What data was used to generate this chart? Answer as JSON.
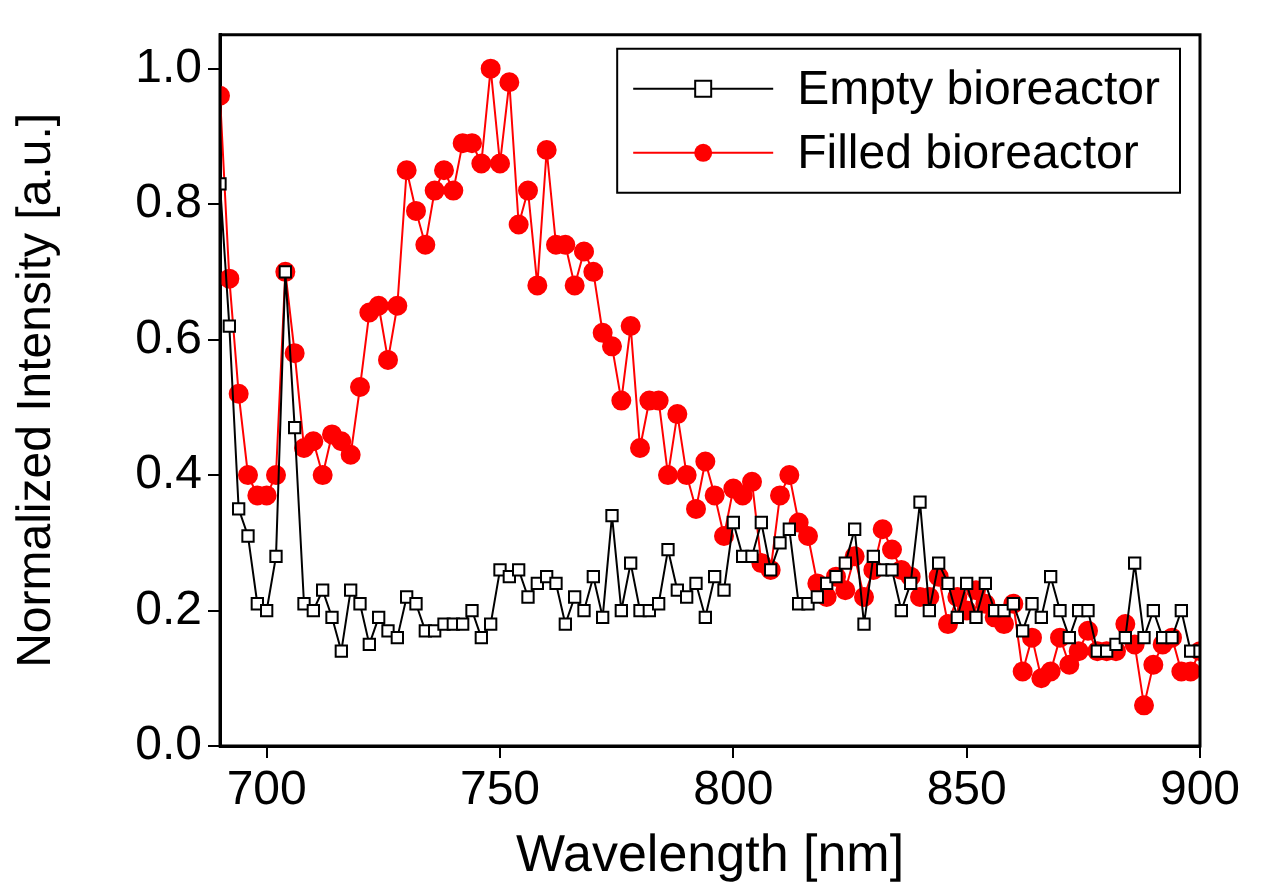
{
  "chart_data": {
    "type": "line",
    "xlabel": "Wavelength [nm]",
    "ylabel": "Normalized Intensity [a.u.]",
    "x": [
      690,
      692,
      694,
      696,
      698,
      700,
      702,
      704,
      706,
      708,
      710,
      712,
      714,
      716,
      718,
      720,
      722,
      724,
      726,
      728,
      730,
      732,
      734,
      736,
      738,
      740,
      742,
      744,
      746,
      748,
      750,
      752,
      754,
      756,
      758,
      760,
      762,
      764,
      766,
      768,
      770,
      772,
      774,
      776,
      778,
      780,
      782,
      784,
      786,
      788,
      790,
      792,
      794,
      796,
      798,
      800,
      802,
      804,
      806,
      808,
      810,
      812,
      814,
      816,
      818,
      820,
      822,
      824,
      826,
      828,
      830,
      832,
      834,
      836,
      838,
      840,
      842,
      844,
      846,
      848,
      850,
      852,
      854,
      856,
      858,
      860,
      862,
      864,
      866,
      868,
      870,
      872,
      874,
      876,
      878,
      880,
      882,
      884,
      886,
      888,
      890,
      892,
      894,
      896,
      898,
      900
    ],
    "series": [
      {
        "name": "Empty bioreactor",
        "color": "#000000",
        "marker": "square",
        "values": [
          0.83,
          0.62,
          0.35,
          0.31,
          0.21,
          0.2,
          0.28,
          0.7,
          0.47,
          0.21,
          0.2,
          0.23,
          0.19,
          0.14,
          0.23,
          0.21,
          0.15,
          0.19,
          0.17,
          0.16,
          0.22,
          0.21,
          0.17,
          0.17,
          0.18,
          0.18,
          0.18,
          0.2,
          0.16,
          0.18,
          0.26,
          0.25,
          0.26,
          0.22,
          0.24,
          0.25,
          0.24,
          0.18,
          0.22,
          0.2,
          0.25,
          0.19,
          0.34,
          0.2,
          0.27,
          0.2,
          0.2,
          0.21,
          0.29,
          0.23,
          0.22,
          0.24,
          0.19,
          0.25,
          0.23,
          0.33,
          0.28,
          0.28,
          0.33,
          0.26,
          0.3,
          0.32,
          0.21,
          0.21,
          0.22,
          0.24,
          0.25,
          0.27,
          0.32,
          0.18,
          0.28,
          0.26,
          0.26,
          0.2,
          0.24,
          0.36,
          0.2,
          0.27,
          0.24,
          0.19,
          0.24,
          0.19,
          0.24,
          0.2,
          0.2,
          0.21,
          0.17,
          0.21,
          0.19,
          0.25,
          0.2,
          0.16,
          0.2,
          0.2,
          0.14,
          0.14,
          0.15,
          0.16,
          0.27,
          0.16,
          0.2,
          0.16,
          0.16,
          0.2,
          0.14,
          0.14
        ]
      },
      {
        "name": "Filled bioreactor",
        "color": "#ff0000",
        "marker": "circle",
        "values": [
          0.96,
          0.69,
          0.52,
          0.4,
          0.37,
          0.37,
          0.4,
          0.7,
          0.58,
          0.44,
          0.45,
          0.4,
          0.46,
          0.45,
          0.43,
          0.53,
          0.64,
          0.65,
          0.57,
          0.65,
          0.85,
          0.79,
          0.74,
          0.82,
          0.85,
          0.82,
          0.89,
          0.89,
          0.86,
          1.0,
          0.86,
          0.98,
          0.77,
          0.82,
          0.68,
          0.88,
          0.74,
          0.74,
          0.68,
          0.73,
          0.7,
          0.61,
          0.59,
          0.51,
          0.62,
          0.44,
          0.51,
          0.51,
          0.4,
          0.49,
          0.4,
          0.35,
          0.42,
          0.37,
          0.31,
          0.38,
          0.37,
          0.39,
          0.27,
          0.26,
          0.37,
          0.4,
          0.33,
          0.31,
          0.24,
          0.22,
          0.25,
          0.23,
          0.28,
          0.22,
          0.26,
          0.32,
          0.29,
          0.26,
          0.25,
          0.22,
          0.22,
          0.25,
          0.18,
          0.22,
          0.2,
          0.23,
          0.21,
          0.19,
          0.18,
          0.21,
          0.11,
          0.16,
          0.1,
          0.11,
          0.16,
          0.12,
          0.14,
          0.17,
          0.14,
          0.14,
          0.14,
          0.18,
          0.15,
          0.06,
          0.12,
          0.15,
          0.16,
          0.11,
          0.11,
          0.14
        ]
      }
    ],
    "xlim": [
      690,
      900
    ],
    "xticks": [
      700,
      750,
      800,
      850,
      900
    ],
    "ylim": [
      0,
      1.05
    ],
    "yticks": [
      {
        "value": 0,
        "label": "0.0"
      },
      {
        "value": 0.2,
        "label": "0.2"
      },
      {
        "value": 0.4,
        "label": "0.4"
      },
      {
        "value": 0.6,
        "label": "0.6"
      },
      {
        "value": 0.8,
        "label": "0.8"
      },
      {
        "value": 1,
        "label": "1.0"
      }
    ],
    "legend": "top right",
    "grid": false,
    "line_style": "solid"
  }
}
